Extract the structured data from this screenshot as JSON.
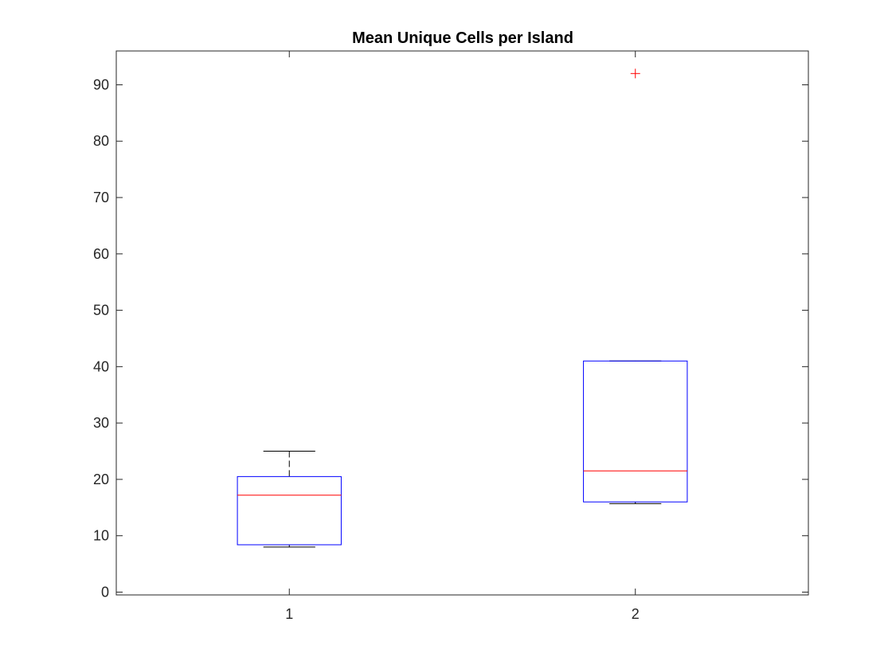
{
  "chart_data": {
    "type": "box",
    "title": "Mean Unique Cells per Island",
    "xlabel": "",
    "ylabel": "",
    "categories": [
      "1",
      "2"
    ],
    "ylim": [
      -0.5,
      96
    ],
    "yticks": [
      0,
      10,
      20,
      30,
      40,
      50,
      60,
      70,
      80,
      90
    ],
    "grid": false,
    "boxes": [
      {
        "category": "1",
        "q1": 8.4,
        "median": 17.2,
        "q3": 20.5,
        "whisker_low": 8.0,
        "whisker_high": 25.0,
        "outliers": []
      },
      {
        "category": "2",
        "q1": 16.0,
        "median": 21.5,
        "q3": 41.0,
        "whisker_low": 15.7,
        "whisker_high": 41.0,
        "outliers": [
          92.0
        ]
      }
    ],
    "colors": {
      "box": "#0000ff",
      "median": "#ff0000",
      "whisker": "#000000",
      "outlier": "#ff0000",
      "axis": "#262626"
    }
  }
}
